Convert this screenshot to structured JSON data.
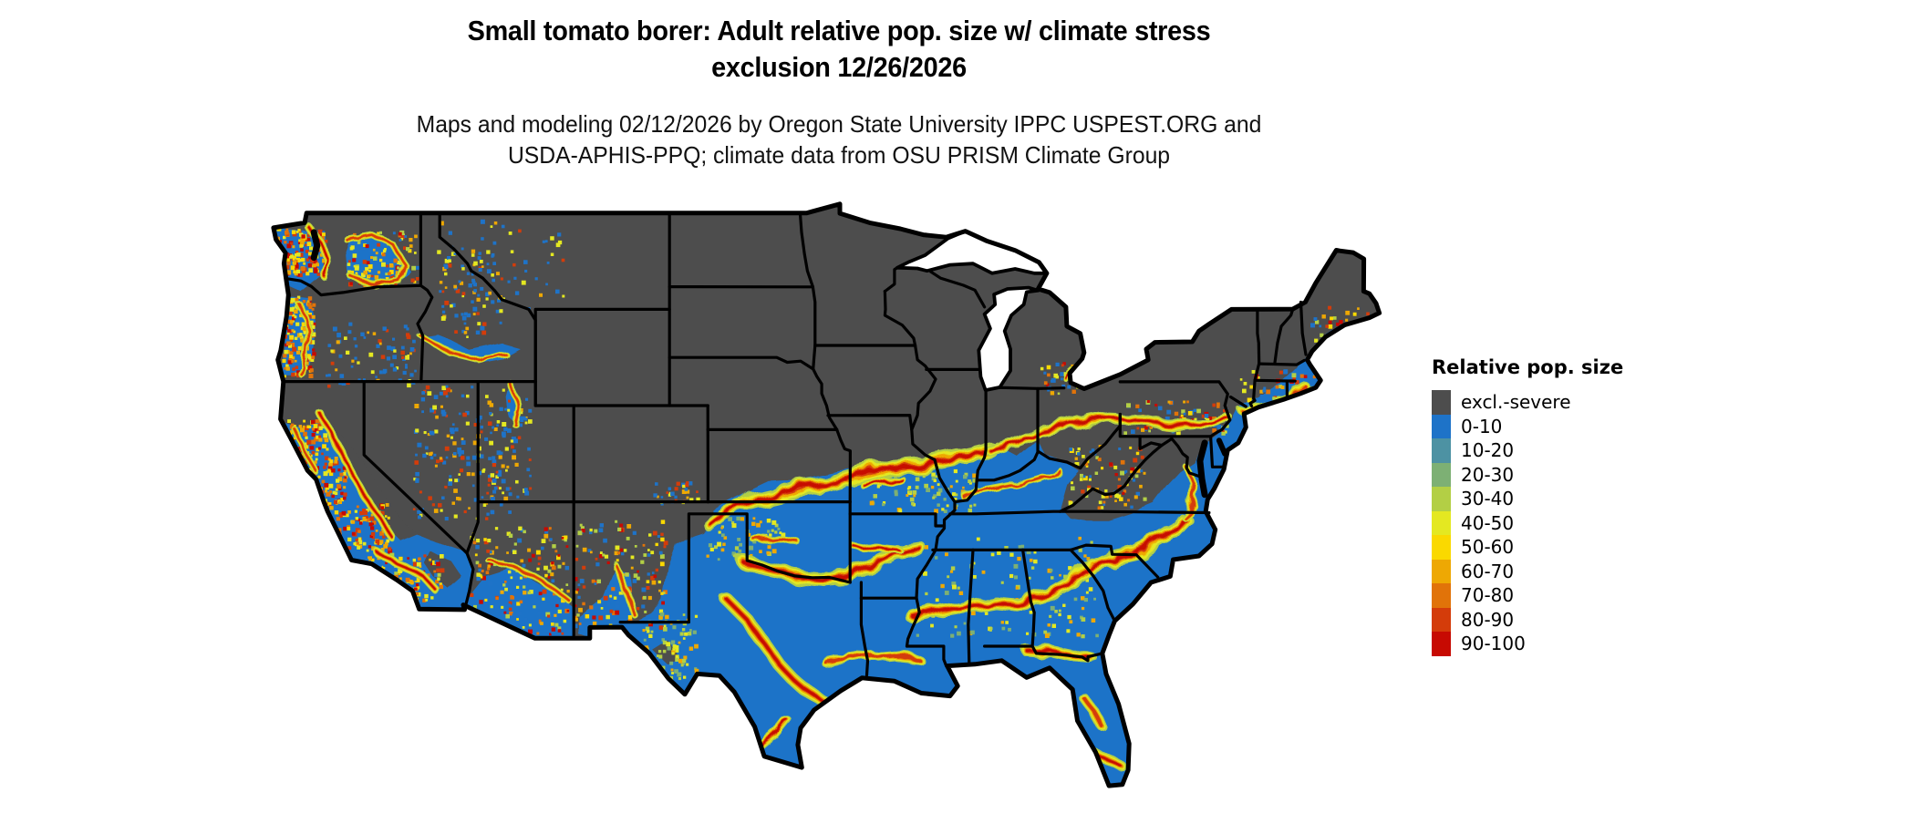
{
  "figure": {
    "title_line1": "Small tomato borer: Adult relative pop. size w/ climate stress",
    "title_line2": "exclusion 12/26/2026",
    "subtitle_line1": "Maps and modeling 02/12/2026 by Oregon State University IPPC USPEST.ORG and",
    "subtitle_line2": "USDA-APHIS-PPQ; climate data from OSU PRISM Climate Group"
  },
  "map": {
    "region": "Contiguous United States",
    "type": "raster choropleth",
    "background_color": "#ffffff",
    "excluded_fill": "#4d4d4d",
    "state_border_color": "#000000",
    "water_color": "#ffffff"
  },
  "legend": {
    "title": "Relative pop. size",
    "items": [
      {
        "label": "excl.-severe",
        "color": "#4d4d4d"
      },
      {
        "label": "0-10",
        "color": "#1e73c8"
      },
      {
        "label": "10-20",
        "color": "#4d92a3"
      },
      {
        "label": "20-30",
        "color": "#7db074"
      },
      {
        "label": "30-40",
        "color": "#b3cf45"
      },
      {
        "label": "40-50",
        "color": "#e4e821"
      },
      {
        "label": "50-60",
        "color": "#fad900"
      },
      {
        "label": "60-70",
        "color": "#eea803"
      },
      {
        "label": "70-80",
        "color": "#e17309"
      },
      {
        "label": "80-90",
        "color": "#d43c0a"
      },
      {
        "label": "90-100",
        "color": "#c70a02"
      }
    ]
  }
}
